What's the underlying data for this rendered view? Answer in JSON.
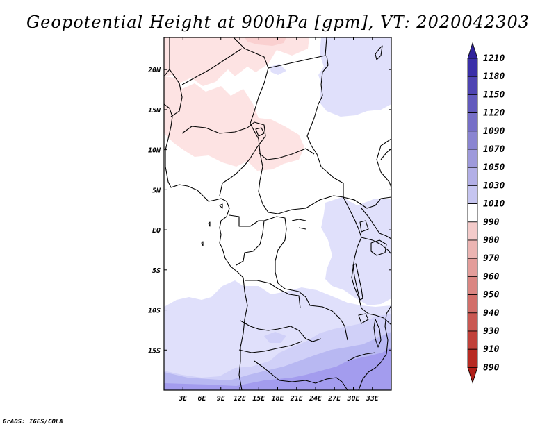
{
  "title": "Geopotential Height at 900hPa [gpm], VT: 2020042303",
  "credit": "GrADS: IGES/COLA",
  "map": {
    "lon_range": [
      0,
      36
    ],
    "lat_range": [
      -20,
      24
    ],
    "lon_ticks": [
      "3E",
      "6E",
      "9E",
      "12E",
      "15E",
      "18E",
      "21E",
      "24E",
      "27E",
      "30E",
      "33E"
    ],
    "lat_ticks": [
      "20N",
      "15N",
      "10N",
      "5N",
      "EQ",
      "5S",
      "10S",
      "15S"
    ]
  },
  "colorbar": {
    "levels": [
      "1210",
      "1180",
      "1150",
      "1120",
      "1090",
      "1070",
      "1050",
      "1030",
      "1010",
      "990",
      "980",
      "970",
      "960",
      "950",
      "940",
      "930",
      "910",
      "890"
    ],
    "colors": {
      "very_light_red": "#fde3e3",
      "light_blue_1": "#e0e0fb",
      "light_blue_2": "#d0d0f8",
      "mid_blue_1": "#b8b8f2",
      "mid_blue_2": "#a39cee",
      "dark_top": "#3a2fa8",
      "dark_bottom": "#b82a22"
    }
  }
}
